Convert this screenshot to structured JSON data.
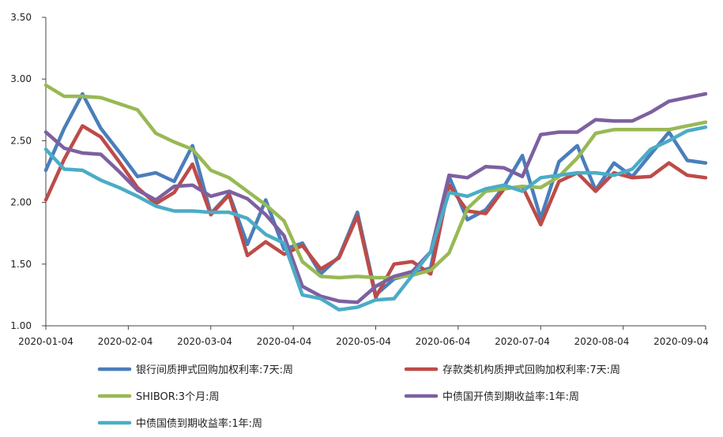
{
  "chart_data": {
    "type": "line",
    "y_range": [
      1.0,
      3.5
    ],
    "y_ticks": [
      "1.00",
      "1.50",
      "2.00",
      "2.50",
      "3.00",
      "3.50"
    ],
    "x_tick_labels": [
      "2020-01-04",
      "2020-02-04",
      "2020-03-04",
      "2020-04-04",
      "2020-05-04",
      "2020-06-04",
      "2020-07-04",
      "2020-08-04",
      "2020-09-04"
    ],
    "grid": false,
    "legend_placement": "bottom",
    "points_per_series": 37,
    "series": [
      {
        "name": "银行间质押式回购加权利率:7天:周",
        "color": "#4a7ebb",
        "values": [
          2.26,
          2.6,
          2.88,
          2.6,
          2.41,
          2.21,
          2.24,
          2.17,
          2.46,
          1.91,
          2.07,
          1.66,
          2.02,
          1.62,
          1.67,
          1.42,
          1.56,
          1.92,
          1.25,
          1.38,
          1.42,
          1.47,
          2.21,
          1.86,
          1.94,
          2.13,
          2.38,
          1.87,
          2.33,
          2.46,
          2.1,
          2.32,
          2.21,
          2.39,
          2.57,
          2.34,
          2.32
        ]
      },
      {
        "name": "存款类机构质押式回购加权利率:7天:周",
        "color": "#be4b48",
        "values": [
          2.02,
          2.35,
          2.62,
          2.53,
          2.33,
          2.12,
          1.99,
          2.08,
          2.31,
          1.9,
          2.06,
          1.57,
          1.68,
          1.58,
          1.65,
          1.46,
          1.55,
          1.89,
          1.23,
          1.5,
          1.52,
          1.42,
          2.14,
          1.93,
          1.91,
          2.11,
          2.13,
          1.82,
          2.17,
          2.24,
          2.09,
          2.24,
          2.2,
          2.21,
          2.32,
          2.22,
          2.2
        ]
      },
      {
        "name": "SHIBOR:3个月:周",
        "color": "#98b954",
        "values": [
          2.95,
          2.86,
          2.86,
          2.85,
          2.8,
          2.75,
          2.56,
          2.49,
          2.43,
          2.26,
          2.2,
          2.09,
          1.98,
          1.85,
          1.52,
          1.4,
          1.39,
          1.4,
          1.39,
          1.39,
          1.41,
          1.45,
          1.59,
          1.95,
          2.09,
          2.11,
          2.13,
          2.12,
          2.21,
          2.36,
          2.56,
          2.59,
          2.59,
          2.59,
          2.59,
          2.62,
          2.65
        ]
      },
      {
        "name": "中债国开债到期收益率:1年:周",
        "color": "#7d60a0",
        "values": [
          2.57,
          2.44,
          2.4,
          2.39,
          2.25,
          2.1,
          2.02,
          2.13,
          2.14,
          2.05,
          2.09,
          2.03,
          1.9,
          1.73,
          1.32,
          1.24,
          1.2,
          1.19,
          1.32,
          1.4,
          1.44,
          1.6,
          2.22,
          2.2,
          2.29,
          2.28,
          2.21,
          2.55,
          2.57,
          2.57,
          2.67,
          2.66,
          2.66,
          2.73,
          2.82,
          2.85,
          2.88
        ]
      },
      {
        "name": "中债国债到期收益率:1年:周",
        "color": "#4bacc6",
        "values": [
          2.43,
          2.27,
          2.26,
          2.18,
          2.12,
          2.05,
          1.97,
          1.93,
          1.93,
          1.92,
          1.92,
          1.87,
          1.74,
          1.67,
          1.25,
          1.22,
          1.13,
          1.15,
          1.21,
          1.22,
          1.41,
          1.6,
          2.08,
          2.05,
          2.11,
          2.14,
          2.09,
          2.2,
          2.22,
          2.24,
          2.24,
          2.22,
          2.27,
          2.43,
          2.5,
          2.58,
          2.61
        ]
      }
    ]
  }
}
